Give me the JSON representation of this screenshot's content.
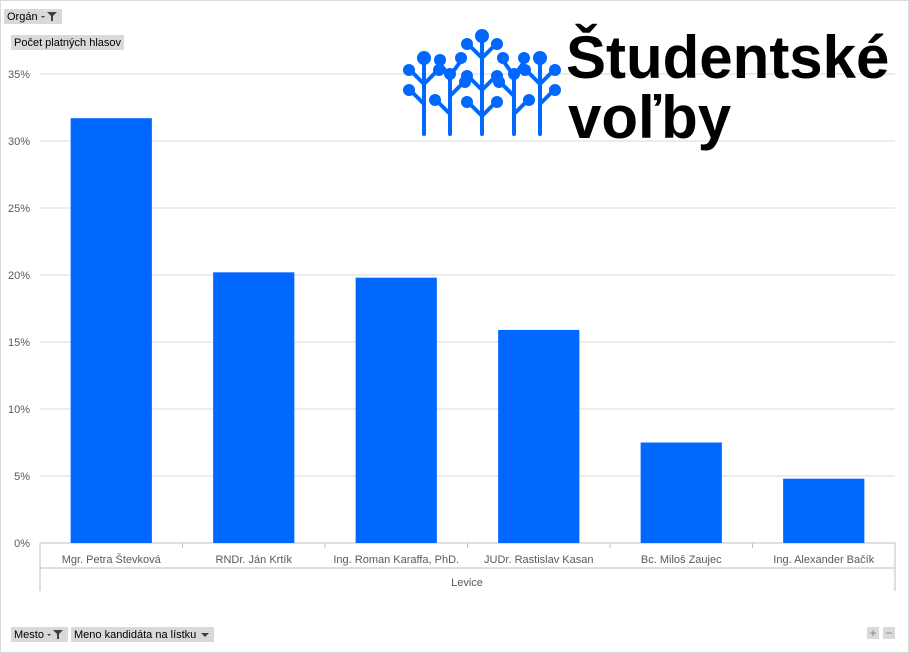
{
  "filters": {
    "organ_label": "Orgán",
    "value_field_label": "Počet platných hlasov",
    "city_label": "Mesto",
    "candidate_label": "Meno kandidáta na lístku"
  },
  "logo": {
    "line1": "Študentské",
    "line2": "voľby",
    "color": "#0068ff",
    "icon": "tree-circuit-icon"
  },
  "zoom": {
    "plus": "+",
    "minus": "−"
  },
  "chart_data": {
    "type": "bar",
    "categories": [
      "Mgr. Petra Števková",
      "RNDr. Ján Krtík",
      "Ing. Roman Karaffa, PhD.",
      "JUDr. Rastislav Kasan",
      "Bc. Miloš Zaujec",
      "Ing. Alexander Bačík"
    ],
    "values": [
      31.7,
      20.2,
      19.8,
      15.9,
      7.5,
      4.8
    ],
    "xlabel": "Levice",
    "ylabel": "",
    "ylim": [
      0,
      35
    ],
    "yticks": [
      "0%",
      "5%",
      "10%",
      "15%",
      "20%",
      "25%",
      "30%",
      "35%"
    ],
    "grid": true,
    "color": "#0068ff"
  }
}
